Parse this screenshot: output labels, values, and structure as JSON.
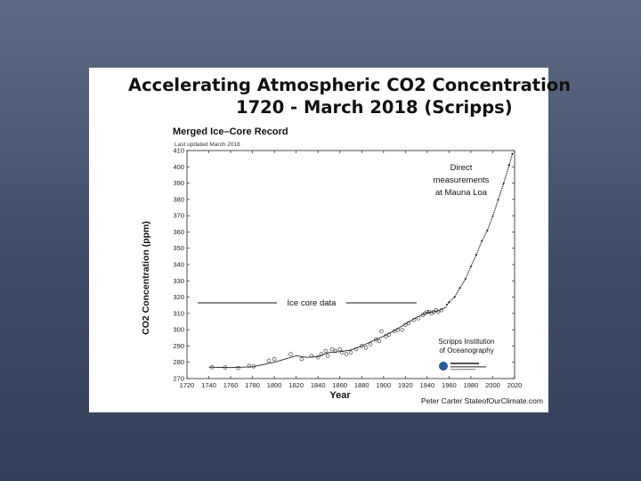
{
  "slide": {
    "title_line1": "Accelerating Atmospheric CO2 Concentration",
    "title_line2": "1720 - March 2018 (Scripps)",
    "credit": "Peter Carter StateofOurClimate.com"
  },
  "chart_data": {
    "type": "line",
    "title": "Merged Ice–Core Record",
    "subtitle": "Last updated March 2018",
    "xlabel": "Year",
    "ylabel": "CO2 Concentration (ppm)",
    "xlim": [
      1720,
      2020
    ],
    "ylim": [
      270,
      410
    ],
    "x_ticks": [
      1720,
      1740,
      1760,
      1780,
      1800,
      1820,
      1840,
      1860,
      1880,
      1900,
      1920,
      1940,
      1960,
      1980,
      2000,
      2020
    ],
    "y_ticks": [
      270,
      280,
      290,
      300,
      310,
      320,
      330,
      340,
      350,
      360,
      370,
      380,
      390,
      400,
      410
    ],
    "grid": false,
    "series": [
      {
        "style": "circles",
        "x": [
          1743,
          1755,
          1767,
          1777,
          1781,
          1795,
          1800,
          1815,
          1825,
          1834,
          1840,
          1843,
          1847,
          1849,
          1853,
          1856,
          1860,
          1862,
          1866,
          1870,
          1875,
          1880,
          1884,
          1888,
          1893,
          1896,
          1898,
          1902,
          1905,
          1910,
          1913,
          1917,
          1920,
          1923,
          1928,
          1932,
          1936,
          1938,
          1940,
          1942,
          1944,
          1946,
          1948,
          1950,
          1953
        ],
        "y": [
          277,
          276.8,
          276.5,
          277.8,
          277.5,
          281,
          282,
          285,
          282,
          284,
          283,
          285,
          287,
          284,
          288,
          287,
          288,
          286,
          285,
          286,
          288,
          290,
          289,
          291,
          294,
          293,
          299,
          296,
          297,
          299,
          300,
          300,
          303,
          304,
          306,
          307,
          309,
          310,
          311,
          311,
          310,
          311,
          312,
          311,
          312
        ]
      },
      {
        "style": "line",
        "x": [
          1740,
          1760,
          1780,
          1800,
          1820,
          1830,
          1840,
          1850,
          1860,
          1870,
          1880,
          1890,
          1900,
          1910,
          1920,
          1930,
          1940,
          1950,
          1958
        ],
        "y": [
          277,
          276.7,
          277.2,
          280,
          284,
          283,
          283.5,
          286,
          286.5,
          287.5,
          290,
          293,
          296,
          299.5,
          303.5,
          307.5,
          310.5,
          311.5,
          314
        ]
      },
      {
        "style": "dots",
        "x": [
          1958,
          1960,
          1965,
          1970,
          1975,
          1980,
          1985,
          1990,
          1995,
          2000,
          2005,
          2010,
          2015,
          2018
        ],
        "y": [
          315.3,
          316.9,
          320.0,
          325.7,
          331.1,
          338.8,
          346.1,
          354.4,
          360.8,
          369.7,
          379.8,
          389.9,
          401.0,
          408.0
        ]
      }
    ],
    "annotations": [
      {
        "text": "Direct",
        "x": 2000,
        "y": 397
      },
      {
        "text": "measurements",
        "x": 2000,
        "y": 391
      },
      {
        "text": "at Mauna Loa",
        "x": 2000,
        "y": 385
      },
      {
        "text": "Ice core data",
        "x": 1790,
        "y": 320
      },
      {
        "text": "Scripps Institution",
        "x": 1988,
        "y": 291
      },
      {
        "text": "of Oceanography",
        "x": 1988,
        "y": 286
      }
    ]
  }
}
